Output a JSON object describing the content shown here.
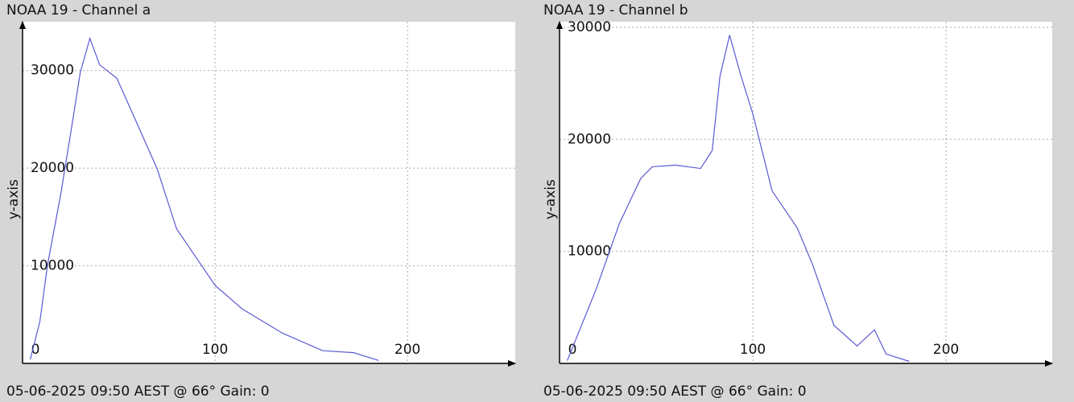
{
  "chart_data": [
    {
      "type": "line",
      "title": "NOAA 19 - Channel a",
      "y_label": "y-axis",
      "footer": "05-06-2025 09:50 AEST @ 66° Gain: 0",
      "x": [
        4,
        9,
        13,
        20,
        26,
        30,
        35,
        40,
        49,
        59,
        70,
        80,
        100,
        114,
        135,
        156,
        172,
        185
      ],
      "series": [
        {
          "color": "#5a5ad2",
          "values": [
            400,
            4300,
            10100,
            17500,
            24800,
            29800,
            33300,
            30600,
            29200,
            24800,
            19900,
            13800,
            8000,
            5600,
            3100,
            1300,
            1100,
            300
          ]
        }
      ],
      "xlim": [
        0,
        256
      ],
      "xticks": [
        0,
        100,
        200
      ],
      "ylim": [
        0,
        35000
      ],
      "yticks": [
        10000,
        20000,
        30000
      ],
      "grid": true
    },
    {
      "type": "line",
      "title": "NOAA 19 - Channel b",
      "y_label": "y-axis",
      "footer": "05-06-2025 09:50 AEST @ 66° Gain: 0",
      "x": [
        4,
        19,
        31,
        42,
        48,
        60,
        73,
        79,
        83,
        88,
        94,
        100,
        110,
        123,
        131,
        142,
        154,
        163,
        169,
        181
      ],
      "series": [
        {
          "color": "#5a5ad2",
          "values": [
            250,
            6650,
            12500,
            16500,
            17550,
            17700,
            17400,
            19000,
            25600,
            29300,
            25600,
            22300,
            15400,
            12100,
            8800,
            3400,
            1560,
            3000,
            840,
            180
          ]
        }
      ],
      "xlim": [
        0,
        255
      ],
      "xticks": [
        0,
        100,
        200
      ],
      "ylim": [
        0,
        30500
      ],
      "yticks": [
        10000,
        20000,
        30000
      ],
      "grid": true
    }
  ]
}
